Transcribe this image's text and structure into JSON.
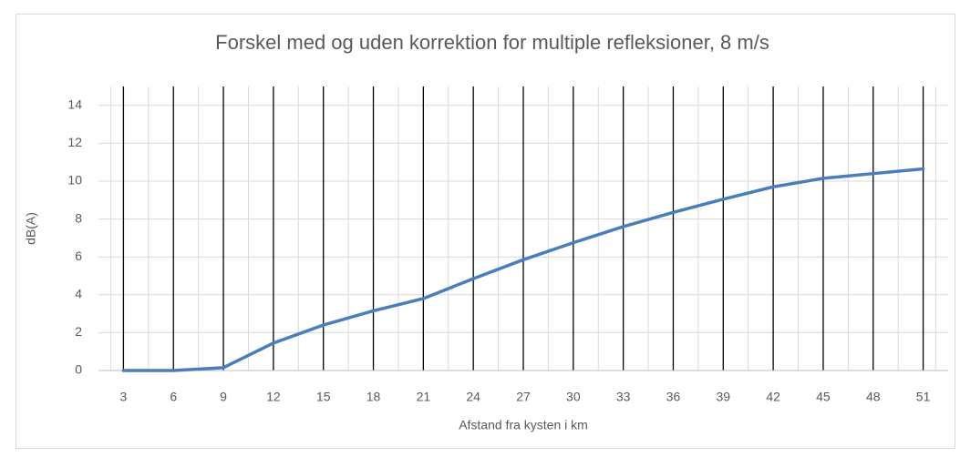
{
  "chart_data": {
    "type": "line",
    "title": "Forskel med og uden korrektion for multiple refleksioner,  8 m/s",
    "xlabel": "Afstand fra kysten i km",
    "ylabel": "dB(A)",
    "x": [
      3,
      6,
      9,
      12,
      15,
      18,
      21,
      24,
      27,
      30,
      33,
      36,
      39,
      42,
      45,
      48,
      51
    ],
    "series": [
      {
        "name": "dB(A)",
        "color": "#4a7ebb",
        "values": [
          0,
          0,
          0.15,
          1.45,
          2.4,
          3.15,
          3.8,
          4.85,
          5.85,
          6.75,
          7.6,
          8.35,
          9.05,
          9.7,
          10.15,
          10.4,
          10.65
        ]
      }
    ],
    "xlim": [
      1.5,
      52.5
    ],
    "xticks": [
      3,
      6,
      9,
      12,
      15,
      18,
      21,
      24,
      27,
      30,
      33,
      36,
      39,
      42,
      45,
      48,
      51
    ],
    "ylim": [
      0,
      15
    ],
    "yticks": [
      0,
      2,
      4,
      6,
      8,
      10,
      12,
      14
    ],
    "grid": true
  }
}
